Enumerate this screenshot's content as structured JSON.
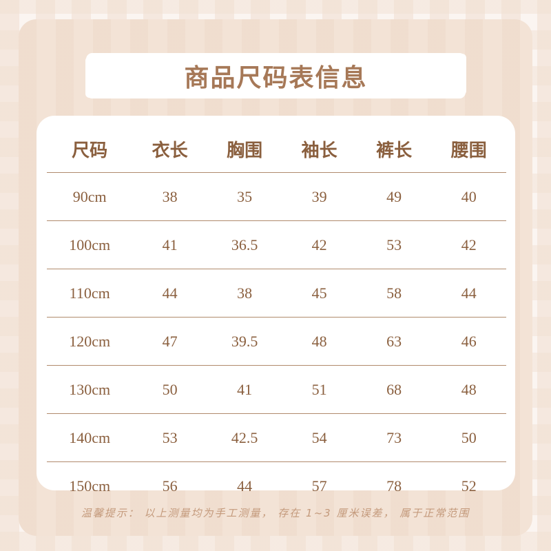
{
  "title": "商品尺码表信息",
  "table": {
    "headers": [
      "尺码",
      "衣长",
      "胸围",
      "袖长",
      "裤长",
      "腰围"
    ],
    "rows": [
      [
        "90cm",
        "38",
        "35",
        "39",
        "49",
        "40"
      ],
      [
        "100cm",
        "41",
        "36.5",
        "42",
        "53",
        "42"
      ],
      [
        "110cm",
        "44",
        "38",
        "45",
        "58",
        "44"
      ],
      [
        "120cm",
        "47",
        "39.5",
        "48",
        "63",
        "46"
      ],
      [
        "130cm",
        "50",
        "41",
        "51",
        "68",
        "48"
      ],
      [
        "140cm",
        "53",
        "42.5",
        "54",
        "73",
        "50"
      ],
      [
        "150cm",
        "56",
        "44",
        "57",
        "78",
        "52"
      ]
    ]
  },
  "note": "温馨提示： 以上测量均为手工测量， 存在 1~3 厘米误差， 属于正常范围",
  "colors": {
    "text": "#8a5f3e",
    "title": "#a67857",
    "panel": "#f3e3d6"
  }
}
